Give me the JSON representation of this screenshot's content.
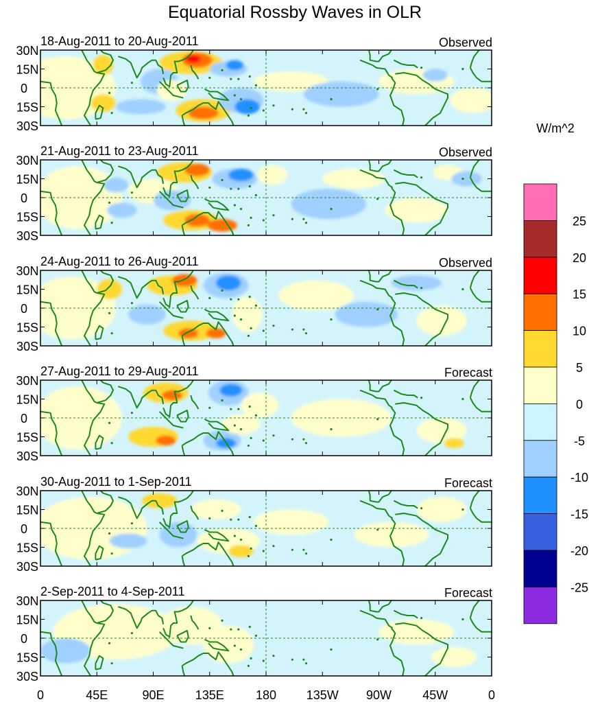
{
  "title": "Equatorial Rossby Waves in OLR",
  "units": "W/m^2",
  "lat_ticks": [
    "30N",
    "15N",
    "0",
    "15S",
    "30S"
  ],
  "lon_ticks": [
    "0",
    "45E",
    "90E",
    "135E",
    "180",
    "135W",
    "90W",
    "45W",
    "0"
  ],
  "panels": [
    {
      "date": "18-Aug-2011 to 20-Aug-2011",
      "status": "Observed"
    },
    {
      "date": "21-Aug-2011 to 23-Aug-2011",
      "status": "Observed"
    },
    {
      "date": "24-Aug-2011 to 26-Aug-2011",
      "status": "Observed"
    },
    {
      "date": "27-Aug-2011 to 29-Aug-2011",
      "status": "Forecast"
    },
    {
      "date": "30-Aug-2011 to 1-Sep-2011",
      "status": "Forecast"
    },
    {
      "date": "2-Sep-2011 to 4-Sep-2011",
      "status": "Forecast"
    }
  ],
  "colorbar": {
    "levels": [
      "25",
      "20",
      "15",
      "10",
      "5",
      "0",
      "-5",
      "-10",
      "-15",
      "-20",
      "-25"
    ],
    "colors": [
      "#ff6eb4",
      "#a52a2a",
      "#ff0000",
      "#ff7000",
      "#ffd830",
      "#ffffcc",
      "#ccf4ff",
      "#a0d0ff",
      "#2090ff",
      "#3860e0",
      "#000090",
      "#8a2be2"
    ]
  },
  "map_colors": {
    "land_outline": "#1a8a1a",
    "grid": "#1a8a1a",
    "background": "#d4f4fc"
  }
}
